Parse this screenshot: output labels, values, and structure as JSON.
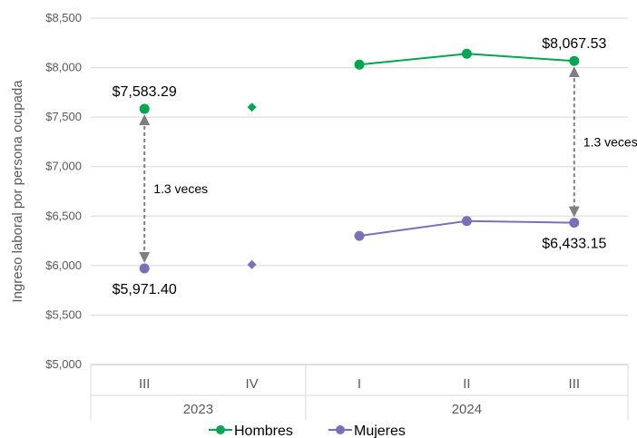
{
  "chart_data": {
    "type": "line",
    "ylabel": "Ingreso laboral por persona ocupada",
    "ylim": [
      5000,
      8500
    ],
    "yticks": [
      "$5,000",
      "$5,500",
      "$6,000",
      "$6,500",
      "$7,000",
      "$7,500",
      "$8,000",
      "$8,500"
    ],
    "yticks_values": [
      5000,
      5500,
      6000,
      6500,
      7000,
      7500,
      8000,
      8500
    ],
    "categories": [
      "III",
      "IV",
      "I",
      "II",
      "III"
    ],
    "years": [
      {
        "label": "2023",
        "span": [
          0,
          1
        ]
      },
      {
        "label": "2024",
        "span": [
          2,
          4
        ]
      }
    ],
    "grid": true,
    "legend_position": "bottom",
    "series": [
      {
        "name": "Hombres",
        "color": "#00A650",
        "values": [
          7583.29,
          7600,
          8030,
          8140,
          8067.53
        ],
        "markers": [
          "circle",
          "diamond",
          "circle",
          "circle",
          "circle"
        ],
        "connected": [
          false,
          false,
          true,
          true,
          true
        ]
      },
      {
        "name": "Mujeres",
        "color": "#7B70B8",
        "values": [
          5971.4,
          6010,
          6300,
          6450,
          6433.15
        ],
        "markers": [
          "circle",
          "diamond",
          "circle",
          "circle",
          "circle"
        ],
        "connected": [
          false,
          false,
          true,
          true,
          true
        ]
      }
    ],
    "data_labels": [
      {
        "series": 0,
        "index": 0,
        "text": "$7,583.29",
        "position": "above"
      },
      {
        "series": 1,
        "index": 0,
        "text": "$5,971.40",
        "position": "below"
      },
      {
        "series": 0,
        "index": 4,
        "text": "$8,067.53",
        "position": "above"
      },
      {
        "series": 1,
        "index": 4,
        "text": "$6,433.15",
        "position": "below"
      }
    ],
    "annotations": [
      {
        "index": 0,
        "text": "1.3 veces",
        "side": "right"
      },
      {
        "index": 4,
        "text": "1.3 veces",
        "side": "right"
      }
    ]
  }
}
